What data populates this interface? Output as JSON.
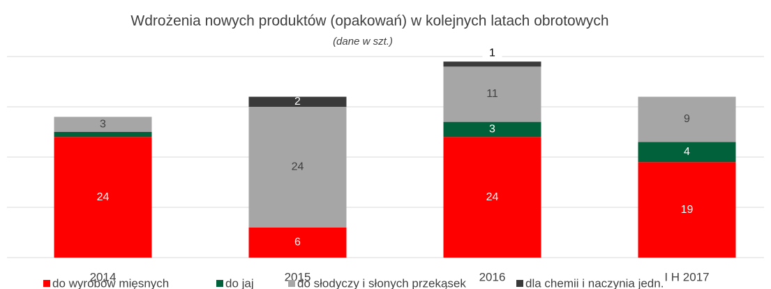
{
  "chart_data": {
    "type": "bar",
    "stacked": true,
    "title": "Wdrożenia nowych produktów (opakowań) w kolejnych latach obrotowych",
    "subtitle": "(dane w szt.)",
    "categories": [
      "2014",
      "2015",
      "2016",
      "I H 2017"
    ],
    "series": [
      {
        "name": "do wyrobów mięsnych",
        "color": "#ff0000",
        "values": [
          24,
          6,
          24,
          19
        ]
      },
      {
        "name": "do jaj",
        "color": "#00613a",
        "values": [
          1,
          null,
          3,
          4
        ]
      },
      {
        "name": "do słodyczy i słonych przekąsek",
        "color": "#a6a6a6",
        "values": [
          3,
          24,
          11,
          9
        ]
      },
      {
        "name": "dla chemii i naczynia jedn.",
        "color": "#3a3a3a",
        "values": [
          null,
          2,
          1,
          null
        ]
      }
    ],
    "ylim": [
      0,
      40
    ],
    "yticks": [
      0,
      10,
      20,
      30,
      40
    ],
    "grid": true,
    "legend": "bottom"
  }
}
